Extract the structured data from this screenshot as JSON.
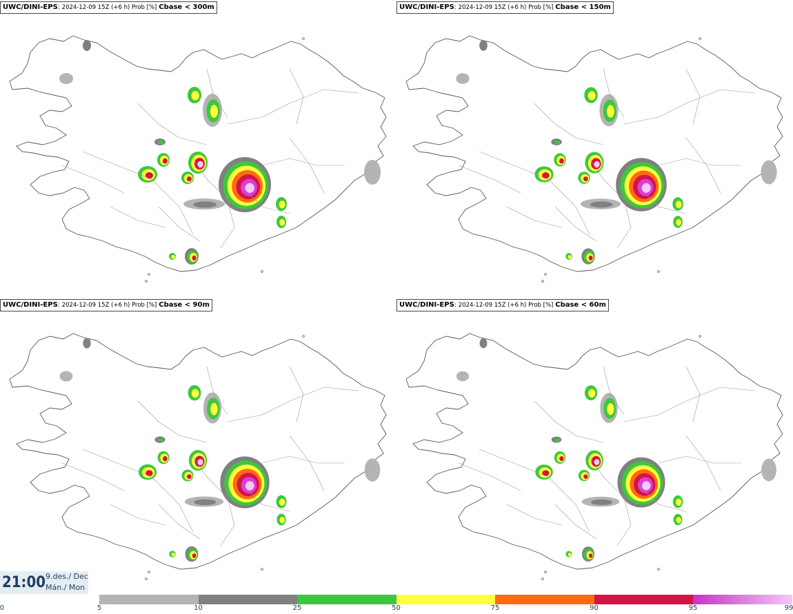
{
  "panels": [
    {
      "model": "UWC/DINI-EPS",
      "run": "2024-12-09 15Z (+6 h) Prob [%]",
      "field": "Cbase < 300m"
    },
    {
      "model": "UWC/DINI-EPS",
      "run": "2024-12-09 15Z (+6 h) Prob [%]",
      "field": "Cbase < 150m"
    },
    {
      "model": "UWC/DINI-EPS",
      "run": "2024-12-09 15Z (+6 h) Prob [%]",
      "field": "Cbase < 90m"
    },
    {
      "model": "UWC/DINI-EPS",
      "run": "2024-12-09 15Z (+6 h) Prob [%]",
      "field": "Cbase < 60m"
    }
  ],
  "valid_time": {
    "time": "21:00",
    "date_is": "9.des./ Dec",
    "day": "Mán./ Mon"
  },
  "legend": {
    "bins": [
      {
        "from": 5,
        "to": 10,
        "color": "#b4b4b4"
      },
      {
        "from": 10,
        "to": 25,
        "color": "#808080"
      },
      {
        "from": 25,
        "to": 50,
        "color": "#3cc83c"
      },
      {
        "from": 50,
        "to": 75,
        "color": "#ffff3c"
      },
      {
        "from": 75,
        "to": 90,
        "color": "#ff6a14"
      },
      {
        "from": 90,
        "to": 95,
        "color": "#d21446"
      },
      {
        "from": 95,
        "to": 99,
        "color": "#dc3cdc"
      }
    ],
    "labels": [
      "0",
      "5",
      "10",
      "25",
      "50",
      "75",
      "90",
      "95",
      "99"
    ]
  }
}
